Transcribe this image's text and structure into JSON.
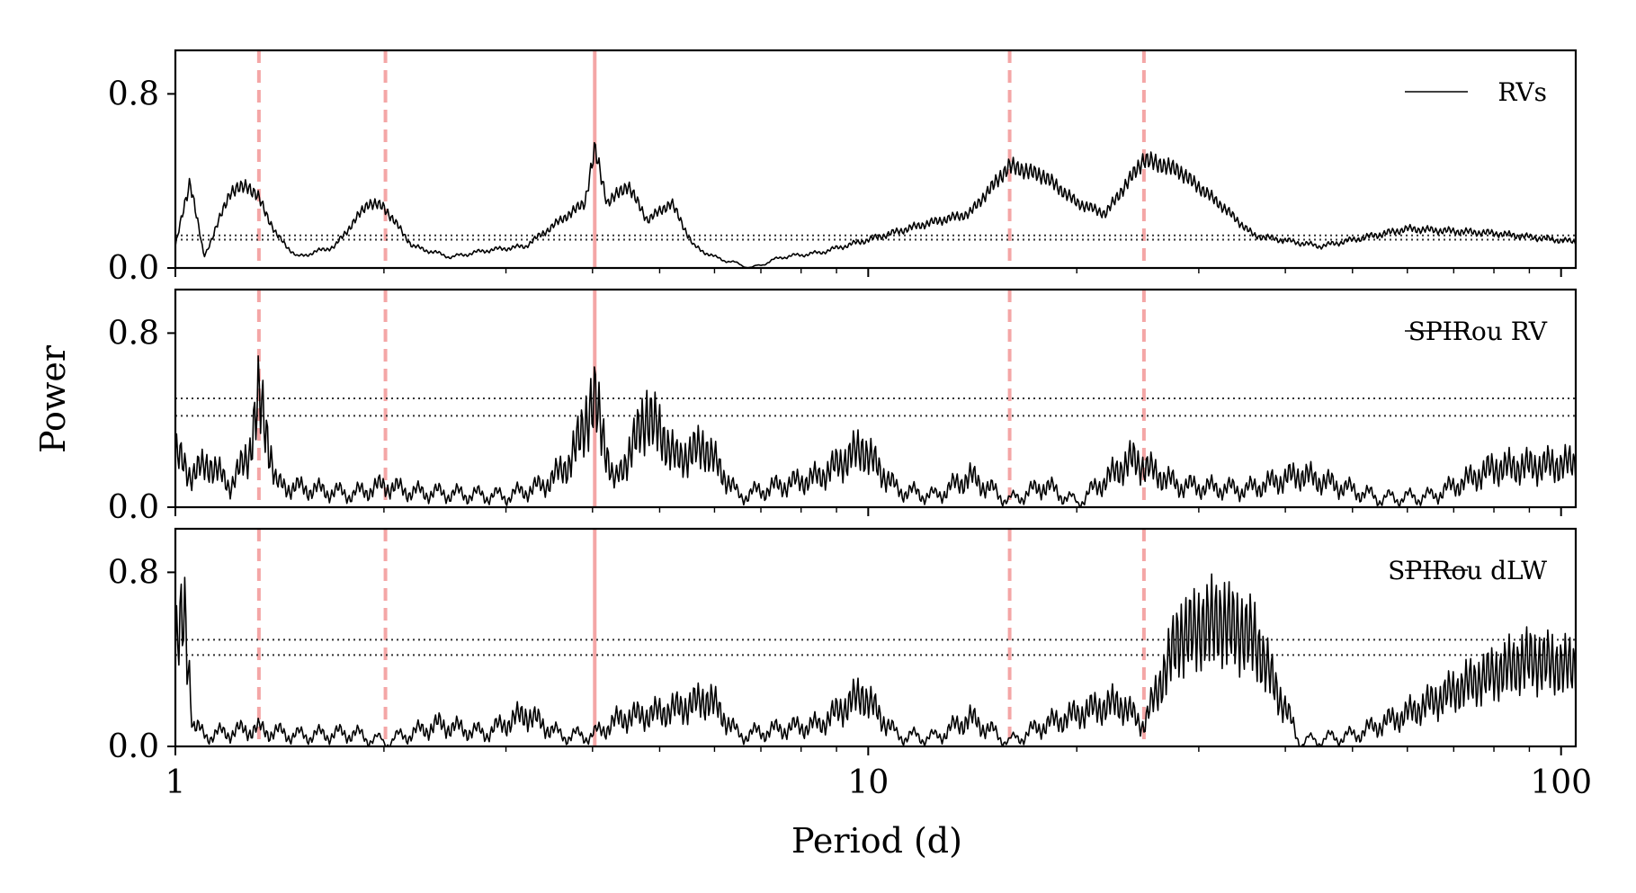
{
  "chart_data": {
    "type": "line",
    "xlabel": "Period (d)",
    "ylabel": "Power",
    "xscale": "log",
    "xlim": [
      1,
      105
    ],
    "x_ticks": [
      1,
      10,
      100
    ],
    "x_tick_labels": [
      "1",
      "10",
      "100"
    ],
    "colors": {
      "series": "#000000",
      "marker_lines": "#f4a6a6",
      "fap_lines": "#333333"
    },
    "marker_periods": [
      {
        "period": 1.32,
        "style": "dashed"
      },
      {
        "period": 2.01,
        "style": "dashed"
      },
      {
        "period": 4.03,
        "style": "solid"
      },
      {
        "period": 16.0,
        "style": "dashed"
      },
      {
        "period": 25.0,
        "style": "dashed"
      }
    ],
    "panels": [
      {
        "legend": "RVs",
        "legend_position": "upper right",
        "ylim": [
          0,
          1.0
        ],
        "y_ticks": [
          0.0,
          0.8
        ],
        "y_tick_labels": [
          "0.0",
          "0.8"
        ],
        "fap_levels": [
          0.13,
          0.15
        ],
        "period": [
          1.0,
          1.05,
          1.1,
          1.15,
          1.2,
          1.27,
          1.32,
          1.4,
          1.5,
          1.7,
          1.9,
          2.0,
          2.2,
          2.5,
          2.8,
          3.2,
          3.6,
          3.9,
          4.03,
          4.2,
          4.5,
          4.8,
          5.2,
          5.6,
          6.0,
          6.8,
          7.5,
          8.5,
          10.0,
          12.0,
          14.0,
          16.0,
          18.0,
          20.0,
          22.0,
          25.0,
          28.0,
          32.0,
          36.0,
          45.0,
          60.0,
          80.0,
          105.0
        ],
        "power": [
          0.1,
          0.4,
          0.05,
          0.2,
          0.35,
          0.38,
          0.32,
          0.15,
          0.05,
          0.1,
          0.3,
          0.28,
          0.1,
          0.05,
          0.08,
          0.1,
          0.22,
          0.3,
          0.55,
          0.3,
          0.38,
          0.22,
          0.3,
          0.1,
          0.05,
          0.0,
          0.05,
          0.07,
          0.13,
          0.2,
          0.25,
          0.47,
          0.42,
          0.3,
          0.25,
          0.5,
          0.45,
          0.3,
          0.15,
          0.1,
          0.18,
          0.16,
          0.12
        ]
      },
      {
        "legend": "SPIRou RV",
        "legend_position": "upper right",
        "ylim": [
          0,
          1.0
        ],
        "y_ticks": [
          0.0,
          0.8
        ],
        "y_tick_labels": [
          "0.0",
          "0.8"
        ],
        "fap_levels": [
          0.42,
          0.5
        ],
        "period": [
          1.0,
          1.05,
          1.12,
          1.2,
          1.28,
          1.32,
          1.4,
          1.6,
          1.8,
          2.0,
          2.2,
          2.6,
          3.0,
          3.4,
          3.7,
          4.03,
          4.3,
          4.8,
          5.3,
          5.8,
          6.5,
          7.5,
          8.5,
          9.8,
          11.0,
          12.5,
          14.0,
          16.0,
          18.0,
          20.0,
          24.0,
          28.0,
          35.0,
          42.0,
          55.0,
          65.0,
          80.0,
          105.0
        ],
        "power": [
          0.25,
          0.15,
          0.2,
          0.1,
          0.25,
          0.52,
          0.1,
          0.08,
          0.06,
          0.1,
          0.07,
          0.06,
          0.05,
          0.1,
          0.2,
          0.5,
          0.1,
          0.43,
          0.22,
          0.28,
          0.05,
          0.1,
          0.14,
          0.27,
          0.08,
          0.05,
          0.14,
          0.03,
          0.1,
          0.02,
          0.22,
          0.1,
          0.08,
          0.15,
          0.04,
          0.05,
          0.18,
          0.2
        ]
      },
      {
        "legend": "SPIRou dLW",
        "legend_position": "upper right",
        "ylim": [
          0,
          1.0
        ],
        "y_ticks": [
          0.0,
          0.8
        ],
        "y_tick_labels": [
          "0.0",
          "0.8"
        ],
        "fap_levels": [
          0.42,
          0.49
        ],
        "period": [
          1.0,
          1.03,
          1.06,
          1.1,
          1.3,
          1.5,
          1.8,
          2.0,
          2.4,
          2.8,
          3.2,
          3.6,
          4.0,
          4.4,
          4.9,
          5.4,
          5.9,
          6.5,
          7.5,
          8.5,
          9.8,
          11.0,
          12.5,
          14.0,
          16.0,
          18.0,
          21.0,
          23.0,
          25.0,
          28.0,
          32.0,
          36.0,
          42.0,
          50.0,
          60.0,
          75.0,
          90.0,
          105.0
        ],
        "power": [
          0.45,
          0.62,
          0.1,
          0.05,
          0.08,
          0.05,
          0.06,
          0.02,
          0.1,
          0.06,
          0.15,
          0.05,
          0.05,
          0.13,
          0.15,
          0.18,
          0.22,
          0.05,
          0.08,
          0.1,
          0.24,
          0.05,
          0.04,
          0.13,
          0.02,
          0.1,
          0.17,
          0.2,
          0.1,
          0.5,
          0.58,
          0.5,
          0.02,
          0.05,
          0.15,
          0.3,
          0.4,
          0.36
        ]
      }
    ]
  }
}
